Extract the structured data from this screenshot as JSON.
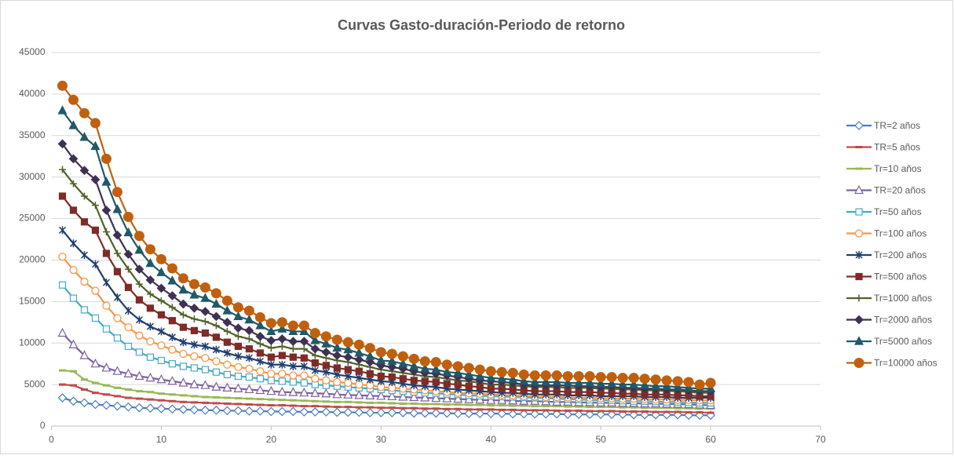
{
  "chart_data": {
    "type": "line",
    "title": "Curvas Gasto-duración-Periodo de retorno",
    "x": [
      1,
      2,
      3,
      4,
      5,
      6,
      7,
      8,
      9,
      10,
      11,
      12,
      13,
      14,
      15,
      16,
      17,
      18,
      19,
      20,
      21,
      22,
      23,
      24,
      25,
      26,
      27,
      28,
      29,
      30,
      31,
      32,
      33,
      34,
      35,
      36,
      37,
      38,
      39,
      40,
      41,
      42,
      43,
      44,
      45,
      46,
      47,
      48,
      49,
      50,
      51,
      52,
      53,
      54,
      55,
      56,
      57,
      58,
      59,
      60
    ],
    "xlim": [
      0,
      70
    ],
    "xticks": [
      0,
      10,
      20,
      30,
      40,
      50,
      60,
      70
    ],
    "ylim": [
      0,
      45000
    ],
    "yticks": [
      0,
      5000,
      10000,
      15000,
      20000,
      25000,
      30000,
      35000,
      40000,
      45000
    ],
    "grid": true,
    "legend": "right",
    "series": [
      {
        "name": "TR=2 años",
        "color": "#4a7dbb",
        "marker": "diamond-open",
        "values": [
          3400,
          3000,
          2800,
          2600,
          2500,
          2400,
          2300,
          2200,
          2150,
          2100,
          2050,
          2000,
          1950,
          1900,
          1900,
          1850,
          1850,
          1800,
          1800,
          1750,
          1750,
          1750,
          1700,
          1700,
          1700,
          1650,
          1650,
          1650,
          1600,
          1600,
          1600,
          1600,
          1550,
          1550,
          1550,
          1550,
          1500,
          1500,
          1500,
          1500,
          1500,
          1450,
          1450,
          1450,
          1450,
          1450,
          1400,
          1400,
          1400,
          1400,
          1400,
          1400,
          1350,
          1350,
          1350,
          1350,
          1350,
          1300,
          1300,
          1300
        ]
      },
      {
        "name": "TR=5 años",
        "color": "#be4b48",
        "marker": "dash",
        "values": [
          5000,
          4900,
          4400,
          4000,
          3800,
          3600,
          3400,
          3300,
          3200,
          3100,
          3000,
          2900,
          2850,
          2800,
          2750,
          2700,
          2650,
          2600,
          2550,
          2500,
          2500,
          2450,
          2400,
          2400,
          2350,
          2300,
          2300,
          2250,
          2250,
          2200,
          2200,
          2150,
          2150,
          2100,
          2100,
          2050,
          2050,
          2000,
          2000,
          2000,
          1950,
          1950,
          1900,
          1900,
          1900,
          1850,
          1850,
          1850,
          1800,
          1800,
          1800,
          1750,
          1750,
          1750,
          1700,
          1700,
          1700,
          1650,
          1650,
          1600
        ]
      },
      {
        "name": "Tr=10 años",
        "color": "#98b954",
        "marker": "dash",
        "values": [
          6700,
          6600,
          5600,
          5200,
          4900,
          4600,
          4400,
          4200,
          4100,
          3900,
          3800,
          3700,
          3600,
          3500,
          3450,
          3400,
          3350,
          3300,
          3250,
          3200,
          3150,
          3100,
          3050,
          3000,
          2950,
          2900,
          2900,
          2850,
          2800,
          2800,
          2750,
          2700,
          2700,
          2650,
          2650,
          2600,
          2600,
          2550,
          2550,
          2500,
          2500,
          2450,
          2450,
          2400,
          2400,
          2400,
          2350,
          2350,
          2300,
          2300,
          2300,
          2250,
          2250,
          2200,
          2200,
          2200,
          2150,
          2150,
          2100,
          2100
        ]
      },
      {
        "name": "TR=20 años",
        "color": "#7d60a0",
        "marker": "triangle-open",
        "values": [
          11200,
          9800,
          8500,
          7500,
          7000,
          6600,
          6300,
          6000,
          5800,
          5600,
          5400,
          5200,
          5000,
          4900,
          4700,
          4600,
          4500,
          4400,
          4300,
          4200,
          4100,
          4050,
          4000,
          3950,
          3900,
          3800,
          3750,
          3700,
          3650,
          3600,
          3550,
          3500,
          3450,
          3400,
          3350,
          3300,
          3250,
          3200,
          3150,
          3100,
          3100,
          3050,
          3000,
          3000,
          2950,
          2900,
          2900,
          2850,
          2850,
          2800,
          2800,
          2750,
          2750,
          2700,
          2700,
          2650,
          2650,
          2600,
          2550,
          2500
        ]
      },
      {
        "name": "Tr=50 años",
        "color": "#46aac5",
        "marker": "square-open",
        "values": [
          17000,
          15400,
          14000,
          13000,
          11700,
          10600,
          9600,
          8900,
          8300,
          7900,
          7500,
          7200,
          7000,
          6800,
          6500,
          6200,
          6000,
          5900,
          5700,
          5500,
          5400,
          5300,
          5200,
          5000,
          4900,
          4800,
          4700,
          4600,
          4500,
          4400,
          4300,
          4200,
          4100,
          4000,
          3950,
          3850,
          3800,
          3700,
          3650,
          3600,
          3550,
          3500,
          3450,
          3400,
          3350,
          3300,
          3250,
          3200,
          3150,
          3100,
          3100,
          3050,
          3000,
          3000,
          2950,
          2900,
          2900,
          2850,
          2800,
          2800
        ]
      },
      {
        "name": "Tr=100 años",
        "color": "#f79646",
        "marker": "circle-open",
        "values": [
          20400,
          18800,
          17400,
          16300,
          14500,
          13000,
          11900,
          10900,
          10200,
          9700,
          9200,
          8700,
          8400,
          8200,
          7800,
          7400,
          7100,
          6900,
          6600,
          6300,
          6300,
          6100,
          6100,
          5700,
          5500,
          5300,
          5200,
          5000,
          4900,
          4700,
          4600,
          4500,
          4400,
          4300,
          4200,
          4100,
          4000,
          3950,
          3900,
          3800,
          3750,
          3700,
          3600,
          3550,
          3500,
          3500,
          3450,
          3400,
          3400,
          3350,
          3350,
          3300,
          3300,
          3250,
          3200,
          3200,
          3150,
          3150,
          3100,
          3100
        ]
      },
      {
        "name": "Tr=200 años",
        "color": "#1f3f6e",
        "marker": "star",
        "values": [
          23600,
          22000,
          20600,
          19500,
          17300,
          15500,
          13900,
          12800,
          12000,
          11400,
          10700,
          10100,
          9800,
          9600,
          9200,
          8800,
          8400,
          8200,
          7800,
          7400,
          7400,
          7200,
          7200,
          6700,
          6500,
          6200,
          6000,
          5800,
          5600,
          5400,
          5300,
          5100,
          4900,
          4800,
          4700,
          4500,
          4400,
          4300,
          4200,
          4100,
          4000,
          4000,
          3900,
          3800,
          3800,
          3800,
          3700,
          3700,
          3700,
          3600,
          3600,
          3600,
          3600,
          3500,
          3500,
          3500,
          3400,
          3400,
          3400,
          3400
        ]
      },
      {
        "name": "Tr=500 años",
        "color": "#7f2b28",
        "marker": "square",
        "values": [
          27700,
          26000,
          24600,
          23600,
          20800,
          18600,
          16700,
          15200,
          14200,
          13400,
          12700,
          11900,
          11500,
          11200,
          10700,
          10100,
          9600,
          9300,
          8800,
          8300,
          8500,
          8300,
          8200,
          7600,
          7300,
          7000,
          6800,
          6600,
          6300,
          6000,
          5900,
          5700,
          5500,
          5400,
          5300,
          5100,
          5000,
          4800,
          4700,
          4500,
          4500,
          4400,
          4300,
          4200,
          4200,
          4200,
          4100,
          4100,
          4100,
          4000,
          4000,
          3900,
          3900,
          3800,
          3800,
          3800,
          3700,
          3700,
          3600,
          3600
        ]
      },
      {
        "name": "Tr=1000 años",
        "color": "#4f6228",
        "marker": "plus",
        "values": [
          30900,
          29200,
          27700,
          26600,
          23400,
          20800,
          18900,
          17100,
          15900,
          15100,
          14300,
          13400,
          12900,
          12600,
          12100,
          11400,
          10800,
          10500,
          9900,
          9400,
          9600,
          9300,
          9300,
          8500,
          8200,
          7900,
          7700,
          7400,
          7100,
          6800,
          6600,
          6400,
          6200,
          6000,
          5900,
          5700,
          5500,
          5400,
          5200,
          5000,
          5000,
          4900,
          4800,
          4700,
          4700,
          4700,
          4600,
          4600,
          4600,
          4500,
          4500,
          4400,
          4400,
          4300,
          4300,
          4200,
          4200,
          4100,
          4000,
          4000
        ]
      },
      {
        "name": "Tr=2000 años",
        "color": "#403152",
        "marker": "diamond",
        "values": [
          34000,
          32200,
          30800,
          29700,
          26000,
          23000,
          20700,
          18900,
          17600,
          16600,
          15700,
          14700,
          14200,
          13800,
          13200,
          12500,
          11800,
          11500,
          10800,
          10300,
          10500,
          10200,
          10200,
          9300,
          8900,
          8500,
          8300,
          8000,
          7700,
          7300,
          7100,
          6900,
          6600,
          6400,
          6300,
          6100,
          5900,
          5700,
          5500,
          5400,
          5300,
          5200,
          5000,
          4900,
          4900,
          4900,
          4900,
          4800,
          4800,
          4700,
          4700,
          4600,
          4600,
          4500,
          4500,
          4400,
          4400,
          4300,
          4200,
          4200
        ]
      },
      {
        "name": "Tr=5000 años",
        "color": "#215968",
        "marker": "triangle",
        "values": [
          38000,
          36200,
          34800,
          33700,
          29400,
          26100,
          23300,
          21200,
          19600,
          18500,
          17500,
          16400,
          15800,
          15400,
          14700,
          13900,
          13200,
          12800,
          12100,
          11400,
          11700,
          11400,
          11400,
          10300,
          9900,
          9400,
          9200,
          8800,
          8400,
          7900,
          7800,
          7500,
          7200,
          6900,
          6800,
          6500,
          6400,
          6200,
          6000,
          5800,
          5700,
          5600,
          5400,
          5300,
          5300,
          5300,
          5200,
          5200,
          5200,
          5100,
          5100,
          5000,
          5000,
          4900,
          4800,
          4800,
          4700,
          4600,
          4500,
          4500
        ]
      },
      {
        "name": "Tr=10000 años",
        "color": "#c0600f",
        "marker": "circle-big",
        "values": [
          41000,
          39300,
          37700,
          36500,
          32200,
          28200,
          25200,
          22900,
          21300,
          20100,
          19000,
          17800,
          17100,
          16700,
          16000,
          15100,
          14300,
          13900,
          13100,
          12400,
          12500,
          12100,
          12100,
          11200,
          10800,
          10400,
          10100,
          9800,
          9400,
          8900,
          8700,
          8400,
          8100,
          7800,
          7700,
          7400,
          7200,
          7000,
          6800,
          6600,
          6500,
          6400,
          6200,
          6100,
          6100,
          6100,
          6000,
          6000,
          6000,
          5900,
          5900,
          5800,
          5800,
          5700,
          5600,
          5500,
          5400,
          5300,
          5000,
          5200
        ]
      }
    ]
  }
}
